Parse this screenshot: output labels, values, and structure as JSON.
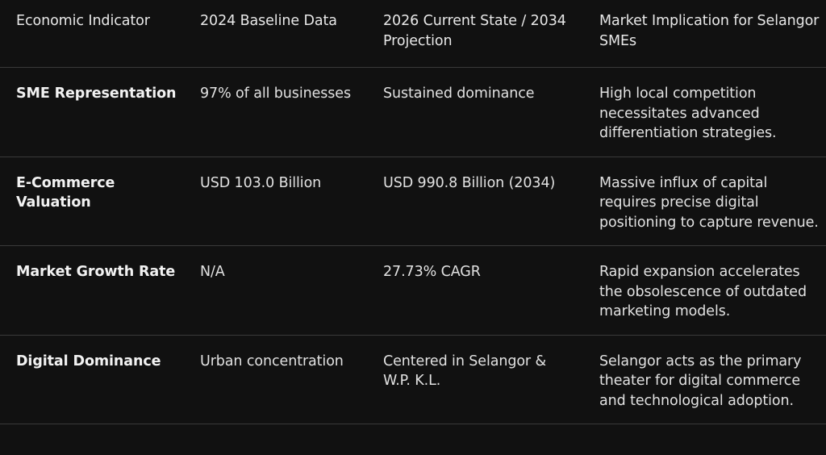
{
  "table": {
    "headers": [
      "Economic Indicator",
      "2024 Baseline Data",
      "2026 Current State / 2034 Projection",
      "Market Implication for Selangor SMEs"
    ],
    "rows": [
      {
        "indicator": "SME Representation",
        "baseline": "97% of all businesses",
        "projection": "Sustained dominance",
        "implication": "High local competition necessitates advanced differentiation strategies."
      },
      {
        "indicator": "E-Commerce Valuation",
        "baseline": "USD 103.0 Billion",
        "projection": "USD 990.8 Billion (2034)",
        "implication": "Massive influx of capital requires precise digital positioning to capture revenue."
      },
      {
        "indicator": "Market Growth Rate",
        "baseline": "N/A",
        "projection": "27.73% CAGR",
        "implication": "Rapid expansion accelerates the obsolescence of outdated marketing models."
      },
      {
        "indicator": "Digital Dominance",
        "baseline": "Urban concentration",
        "projection": "Centered in Selangor & W.P. K.L.",
        "implication": "Selangor acts as the primary theater for digital commerce and technological adoption."
      }
    ]
  }
}
